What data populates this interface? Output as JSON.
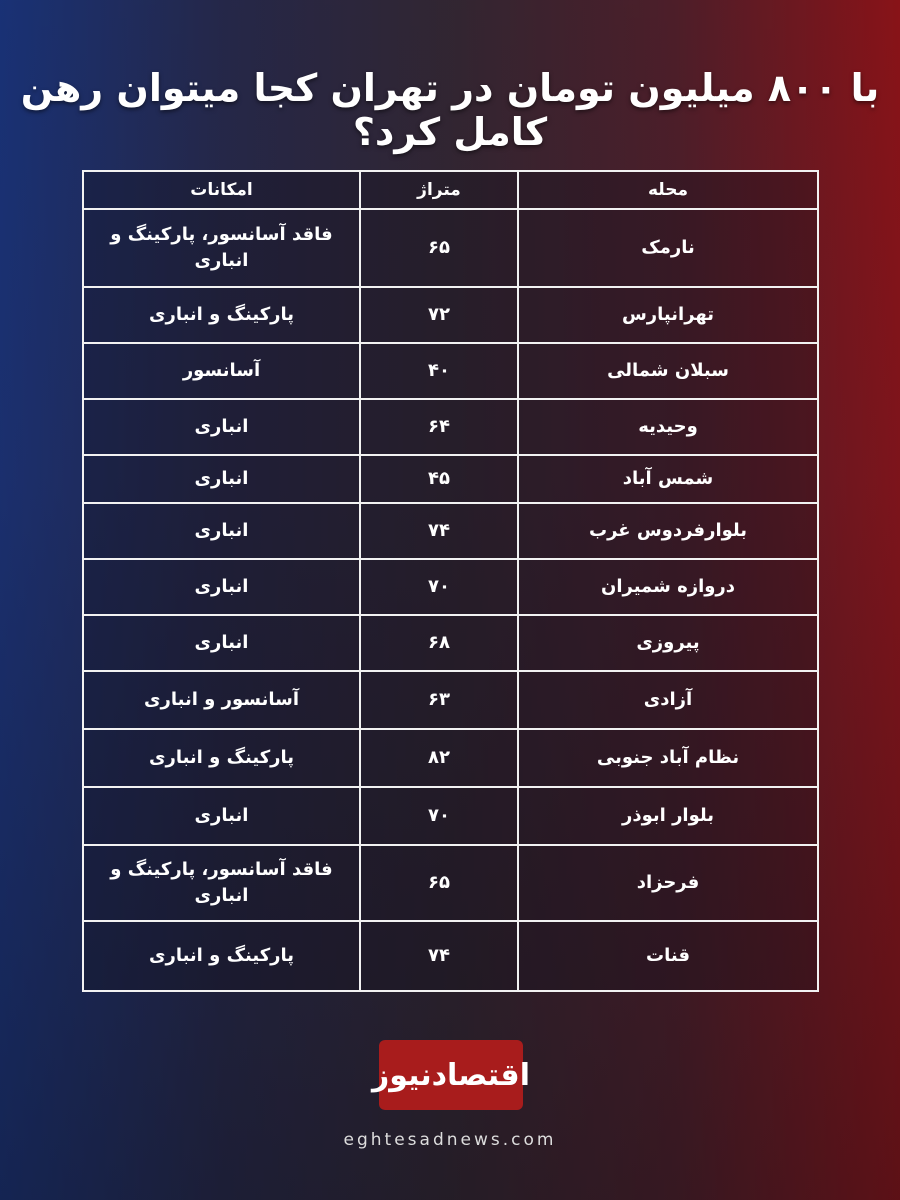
{
  "title": "با ۸۰۰ میلیون تومان در تهران کجا میتوان رهن کامل کرد؟",
  "table": {
    "headers": [
      "محله",
      "متراژ",
      "امکانات"
    ],
    "rows": [
      [
        "نارمک",
        "۶۵",
        "فاقد آسانسور،  پارکینگ و انباری"
      ],
      [
        "تهرانپارس",
        "۷۲",
        "پارکینگ و انباری"
      ],
      [
        "سبلان شمالی",
        "۴۰",
        "آسانسور"
      ],
      [
        "وحیدیه",
        "۶۴",
        "انباری"
      ],
      [
        "شمس آباد",
        "۴۵",
        "انباری"
      ],
      [
        "بلوارفردوس غرب",
        "۷۴",
        "انباری"
      ],
      [
        "دروازه شمیران",
        "۷۰",
        "انباری"
      ],
      [
        "پیروزی",
        "۶۸",
        "انباری"
      ],
      [
        "آزادی",
        "۶۳",
        "آسانسور و انباری"
      ],
      [
        "نظام آباد جنوبی",
        "۸۲",
        "پارکینگ و انباری"
      ],
      [
        "بلوار ابوذر",
        "۷۰",
        "انباری"
      ],
      [
        "فرحزاد",
        "۶۵",
        "فاقد آسانسور،  پارکینگ و انباری"
      ],
      [
        "قنات",
        "۷۴",
        "پارکینگ و انباری"
      ]
    ]
  },
  "logo": {
    "text": "اقتصادنیوز",
    "color": "#a81c1c"
  },
  "website": "eghtesadnews.com"
}
